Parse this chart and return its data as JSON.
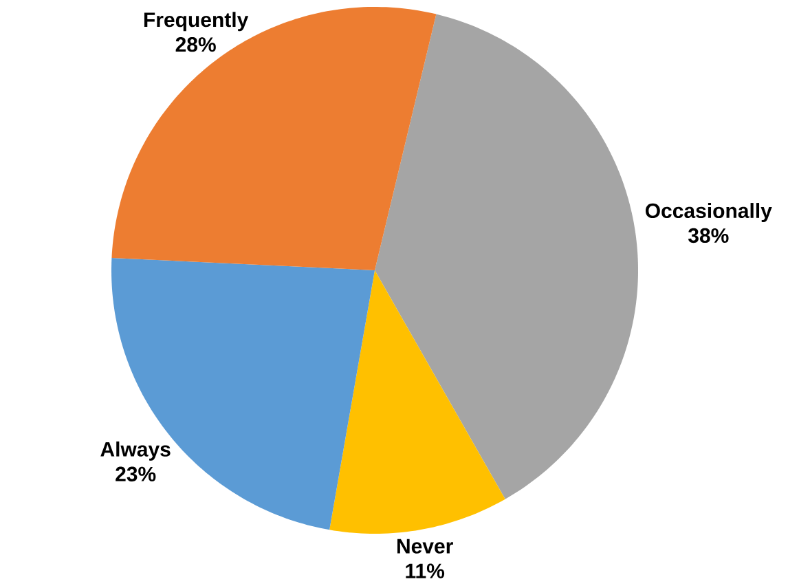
{
  "chart_data": {
    "type": "pie",
    "categories": [
      "Occasionally",
      "Never",
      "Always",
      "Frequently"
    ],
    "values": [
      38,
      11,
      23,
      28
    ],
    "colors": [
      "#a5a5a5",
      "#ffc000",
      "#5b9bd5",
      "#ed7d31"
    ],
    "value_labels": [
      "38%",
      "11%",
      "23%",
      "28%"
    ]
  }
}
